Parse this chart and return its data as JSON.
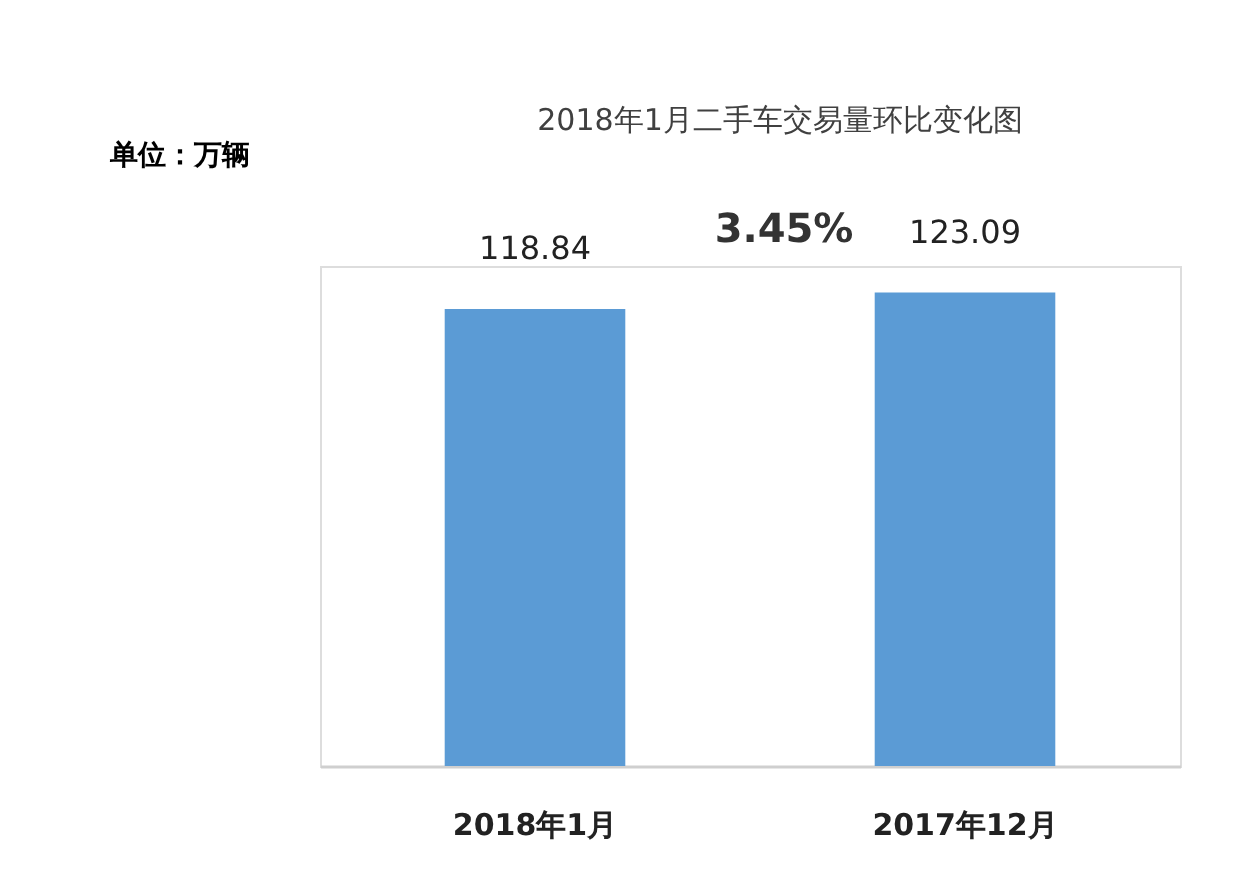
{
  "chart_data": {
    "type": "bar",
    "title": "2018年1月二手车交易量环比变化图",
    "categories": [
      "2018年1月",
      "2017年12月"
    ],
    "values": [
      118.84,
      123.09
    ],
    "color": "#5b9bd5",
    "data_labels": true,
    "annotations": [
      "单位：万辆",
      "3.45%"
    ]
  }
}
